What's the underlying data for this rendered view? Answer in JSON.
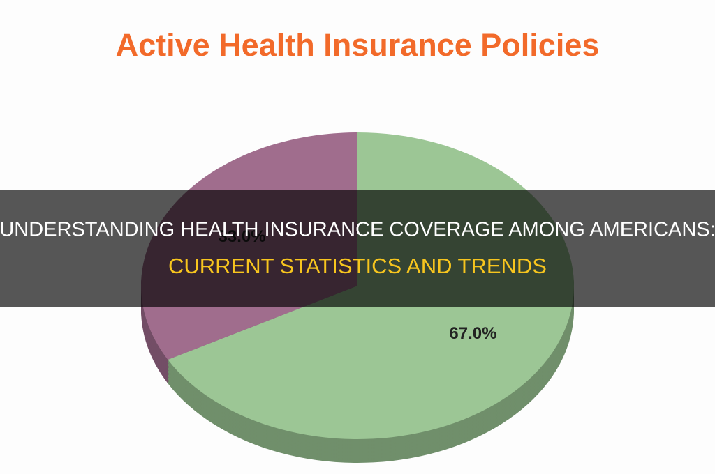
{
  "chart_data": {
    "type": "pie",
    "title": "Active Health Insurance Policies",
    "values": [
      67,
      33
    ],
    "value_labels": [
      "67.0%",
      "33.0%"
    ],
    "colors": [
      "#9cc695",
      "#a06d8d"
    ]
  },
  "banner": {
    "line1": "UNDERSTANDING HEALTH INSURANCE COVERAGE AMONG AMERICANS:",
    "line2": "CURRENT STATISTICS AND TRENDS"
  }
}
